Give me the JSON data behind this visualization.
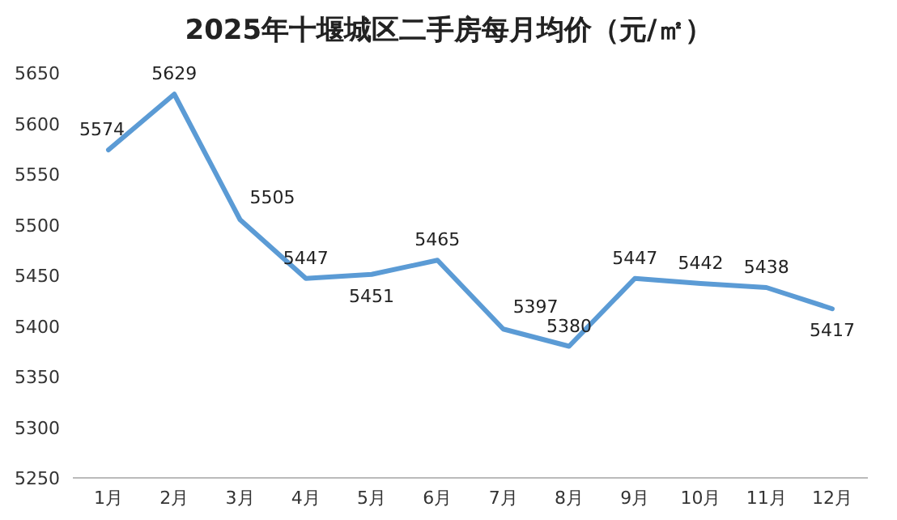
{
  "chart_data": {
    "type": "line",
    "title": "2025年十堰城区二手房每月均价（元/㎡）",
    "categories": [
      "1月",
      "2月",
      "3月",
      "4月",
      "5月",
      "6月",
      "7月",
      "8月",
      "9月",
      "10月",
      "11月",
      "12月"
    ],
    "series": [
      {
        "color": "#5b9bd5",
        "values": [
          5574,
          5629,
          5505,
          5447,
          5451,
          5465,
          5397,
          5380,
          5447,
          5442,
          5438,
          5417
        ]
      }
    ],
    "ylim": [
      5250,
      5650
    ],
    "yticks": [
      5250,
      5300,
      5350,
      5400,
      5450,
      5500,
      5550,
      5600,
      5650
    ],
    "data_labels": true,
    "line_style": "solid"
  }
}
